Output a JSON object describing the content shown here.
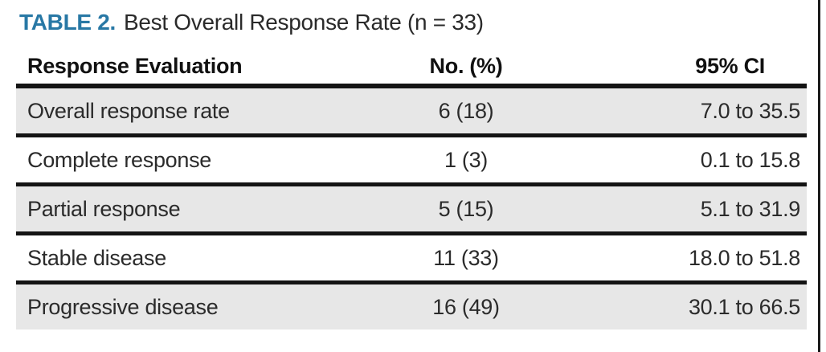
{
  "title": {
    "label": "TABLE 2.",
    "text": "Best Overall Response Rate (n = 33)"
  },
  "colors": {
    "title_accent": "#2878a5",
    "row_shade": "#e7e7e7",
    "rule": "#141414"
  },
  "table": {
    "columns": [
      {
        "label": "Response Evaluation"
      },
      {
        "label": "No. (%)"
      },
      {
        "label": "95% CI"
      }
    ],
    "rows": [
      {
        "evaluation": "Overall response rate",
        "no_pct": "6 (18)",
        "ci": "7.0 to 35.5"
      },
      {
        "evaluation": "Complete response",
        "no_pct": "1 (3)",
        "ci": "0.1 to 15.8"
      },
      {
        "evaluation": "Partial response",
        "no_pct": "5 (15)",
        "ci": "5.1 to 31.9"
      },
      {
        "evaluation": "Stable disease",
        "no_pct": "11 (33)",
        "ci": "18.0 to 51.8"
      },
      {
        "evaluation": "Progressive disease",
        "no_pct": "16 (49)",
        "ci": "30.1 to 66.5"
      }
    ]
  }
}
